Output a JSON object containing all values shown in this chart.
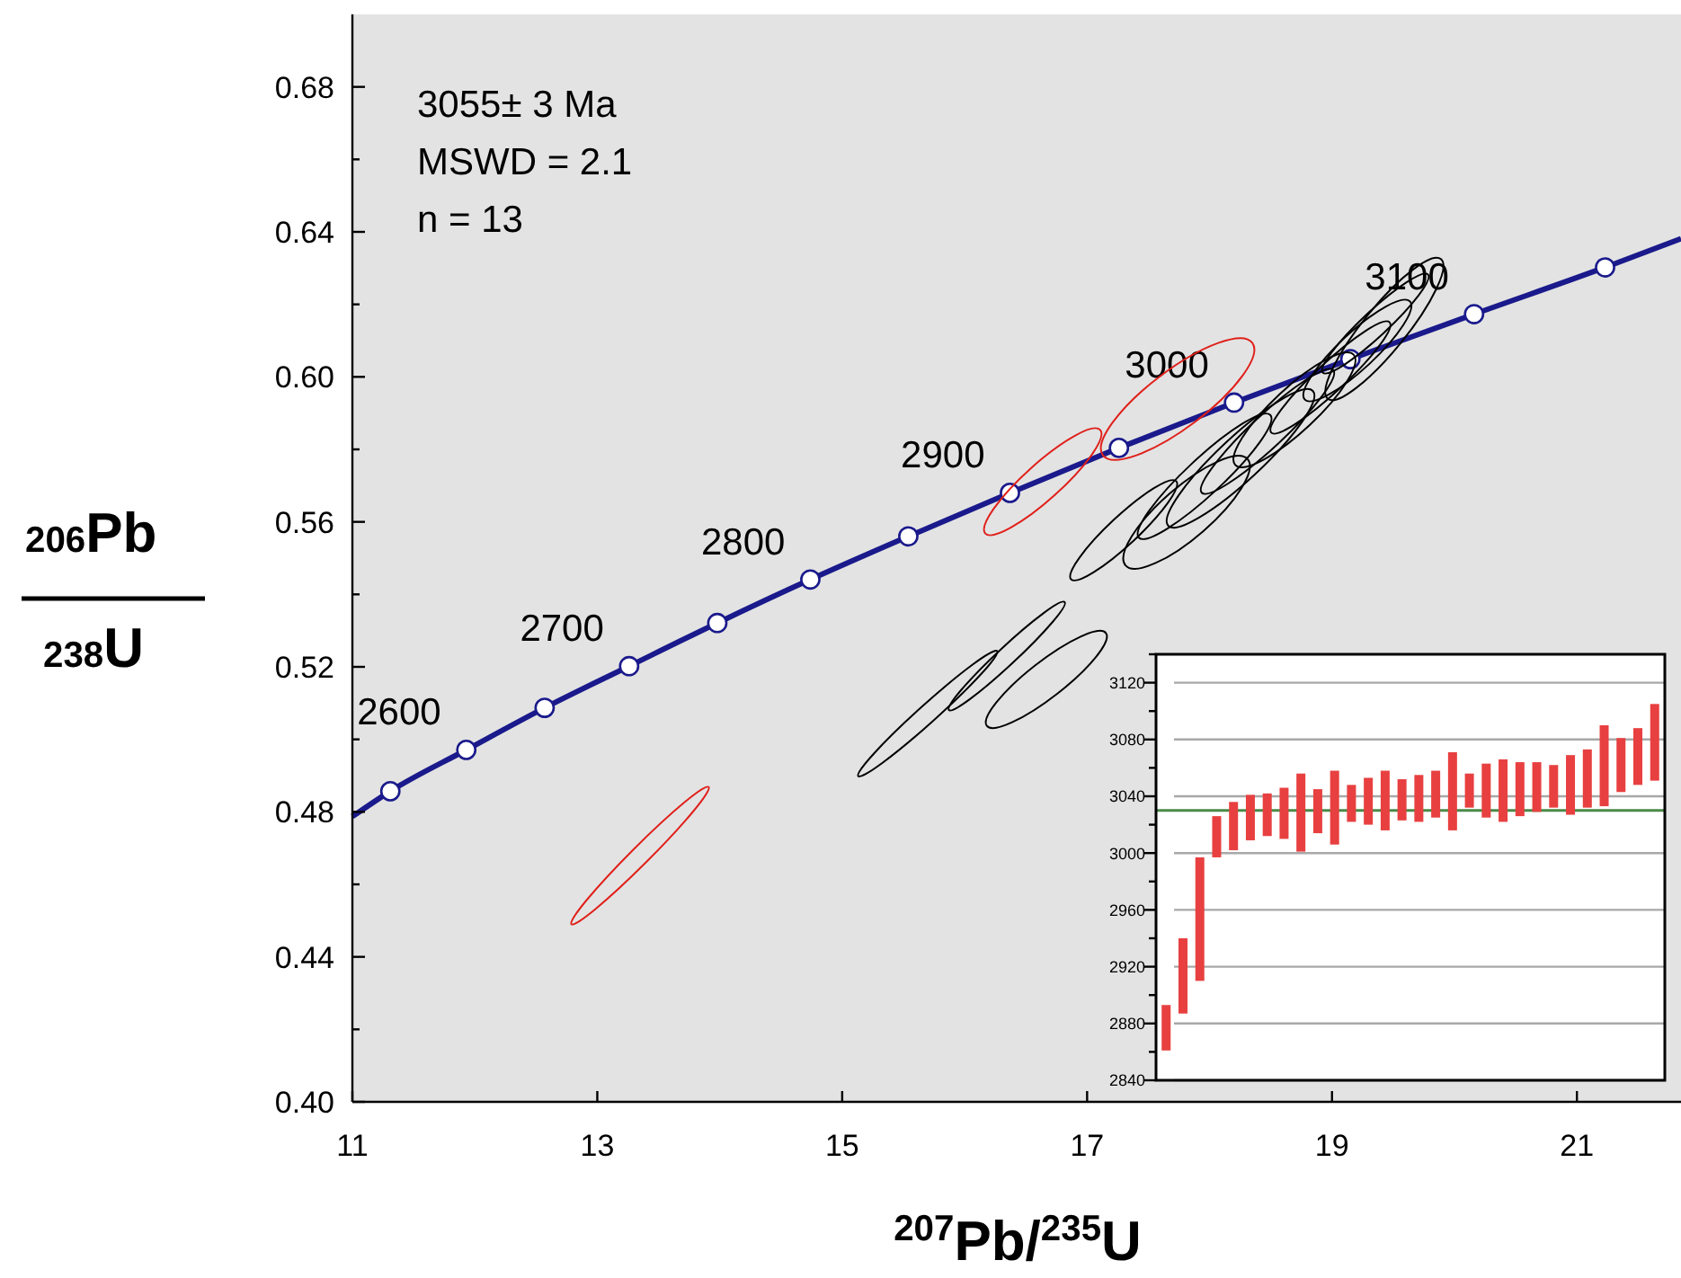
{
  "chart_data": [
    {
      "type": "line",
      "xlabel": "$^{207}$Pb/$^{235}$U",
      "ylabel": "$^{206}$Pb $^{238}$U",
      "xlim": [
        11,
        21.85
      ],
      "ylim": [
        0.4,
        0.7
      ],
      "xticks": [
        11,
        13,
        15,
        17,
        19,
        21
      ],
      "yticks": [
        {
          "value": 0.4,
          "label": "0.40"
        },
        {
          "value": 0.42,
          "label": null
        },
        0.44,
        {
          "value": 0.46,
          "label": null
        },
        0.48,
        {
          "value": 0.5,
          "label": null
        },
        0.52,
        {
          "value": 0.54,
          "label": null
        },
        0.56,
        {
          "value": 0.58,
          "label": null
        },
        {
          "value": 0.6,
          "label": "0.60"
        },
        {
          "value": 0.62,
          "label": null
        },
        0.64,
        {
          "value": 0.66,
          "label": null
        },
        0.68
      ],
      "annotations": [
        "3055± 3 Ma",
        "MSWD = 2.1",
        "n = 13",
        {
          "text": "2600",
          "x": 11.93,
          "y": 0.4971
        },
        {
          "text": "2700",
          "x": 13.26,
          "y": 0.5202
        },
        {
          "text": "2800",
          "x": 14.74,
          "y": 0.5441
        },
        {
          "text": "2900",
          "x": 16.37,
          "y": 0.568
        },
        {
          "text": "3000",
          "x": 18.2,
          "y": 0.5929
        },
        {
          "text": "3100",
          "x": 20.16,
          "y": 0.6173
        }
      ],
      "series": [
        {
          "type": "line",
          "color": "#1a1a8c",
          "marker": "none",
          "x": [
            11.0,
            11.31,
            11.93,
            12.57,
            13.26,
            13.98,
            14.74,
            15.54,
            16.37,
            17.26,
            18.2,
            19.15,
            20.16,
            21.23,
            21.85
          ],
          "values": [
            0.4787,
            0.4857,
            0.4971,
            0.5087,
            0.5202,
            0.5321,
            0.5441,
            0.556,
            0.568,
            0.5804,
            0.5929,
            0.6049,
            0.6173,
            0.6302,
            0.6381
          ]
        },
        {
          "type": "scatter",
          "color": "#ffffff",
          "marker": "circle",
          "x": [
            11.31,
            11.93,
            12.57,
            13.26,
            13.98,
            14.74,
            15.54,
            16.37,
            17.26,
            18.2,
            19.15,
            20.16,
            21.23
          ],
          "values": [
            0.4857,
            0.4971,
            0.5087,
            0.5202,
            0.5321,
            0.5441,
            0.556,
            0.568,
            0.5804,
            0.5929,
            0.6049,
            0.6173,
            0.6302
          ]
        }
      ]
    },
    {
      "type": "bar",
      "categories": [
        null,
        null,
        null,
        null,
        null,
        null,
        null,
        null,
        null,
        null,
        null,
        null,
        null,
        null,
        null,
        null,
        null,
        null,
        null,
        null,
        null,
        null,
        null,
        null,
        null,
        null,
        null,
        null,
        null,
        null
      ],
      "base": [
        2861,
        2887,
        2910,
        2997,
        3002,
        3009,
        3012,
        3010,
        3001,
        3014,
        3006,
        3022,
        3020,
        3016,
        3023,
        3022,
        3025,
        3016,
        3032,
        3025,
        3022,
        3026,
        3029,
        3032,
        3027,
        3032,
        3033,
        3043,
        3048,
        3051
      ],
      "values": [
        32,
        53,
        87,
        29,
        34,
        32,
        30,
        36,
        55,
        31,
        52,
        26,
        33,
        42,
        29,
        33,
        33,
        55,
        24,
        38,
        44,
        38,
        35,
        30,
        42,
        41,
        57,
        38,
        40,
        54
      ],
      "color": "#e84040",
      "ylim": [
        2840,
        3140
      ],
      "yticks": [
        2840,
        {
          "value": 2860,
          "label": null
        },
        2880,
        {
          "value": 2900,
          "label": null
        },
        2920,
        {
          "value": 2940,
          "label": null
        },
        2960,
        {
          "value": 2980,
          "label": null
        },
        3000,
        {
          "value": 3020,
          "label": null
        },
        3040,
        {
          "value": 3060,
          "label": null
        },
        3080,
        {
          "value": 3100,
          "label": null
        },
        3120,
        {
          "value": 3140,
          "label": null
        }
      ],
      "grid": "y",
      "tick_labels": "y",
      "ref_lines": [
        {
          "axis": "y",
          "value": 3030,
          "color": "#4a8a4a"
        }
      ]
    }
  ]
}
